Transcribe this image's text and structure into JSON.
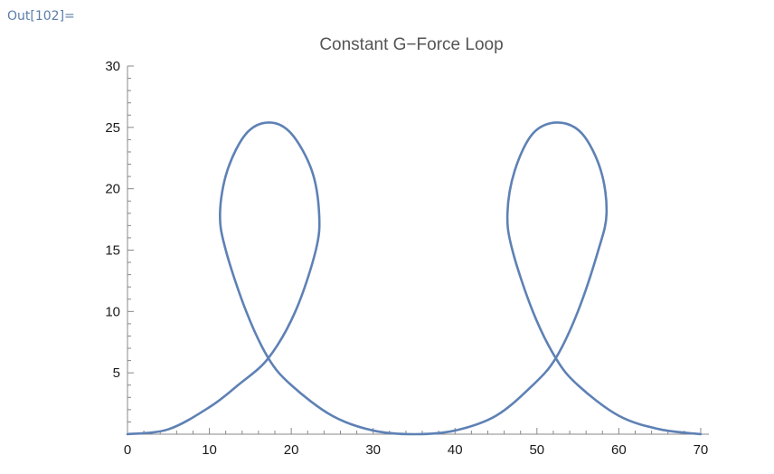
{
  "cell": {
    "out_label": "Out[102]="
  },
  "chart_data": {
    "type": "line",
    "title": "Constant G−Force Loop",
    "xlabel": "",
    "ylabel": "",
    "xlim": [
      0,
      71
    ],
    "ylim": [
      0,
      30
    ],
    "x_ticks": [
      0,
      10,
      20,
      30,
      40,
      50,
      60,
      70
    ],
    "y_ticks": [
      5,
      10,
      15,
      20,
      25,
      30
    ],
    "grid": false,
    "legend": "none",
    "series": [
      {
        "color": "#5e81b5",
        "x": [
          0,
          5,
          10,
          13.5,
          17.2,
          20.5,
          23,
          23.4,
          22.5,
          20,
          17.3,
          14.5,
          12.2,
          11.3,
          12,
          14.5,
          17.2,
          20,
          25,
          30,
          35,
          40,
          45,
          49.5,
          52.3,
          55,
          57.5,
          58.5,
          57.8,
          55.5,
          52.5,
          49.5,
          47.3,
          46.4,
          47,
          49.5,
          52.3,
          55,
          60,
          65,
          70
        ],
        "y": [
          0,
          0.4,
          2.2,
          4,
          6.2,
          10,
          15,
          18,
          21.5,
          24.5,
          25.4,
          24.5,
          21.5,
          18,
          15,
          10,
          6.2,
          4,
          1.5,
          0.3,
          0,
          0.3,
          1.5,
          4,
          6.2,
          10,
          15,
          18,
          21.5,
          24.5,
          25.4,
          24.5,
          21.5,
          18,
          15,
          10,
          6.2,
          4,
          1.5,
          0.4,
          0
        ]
      }
    ]
  }
}
